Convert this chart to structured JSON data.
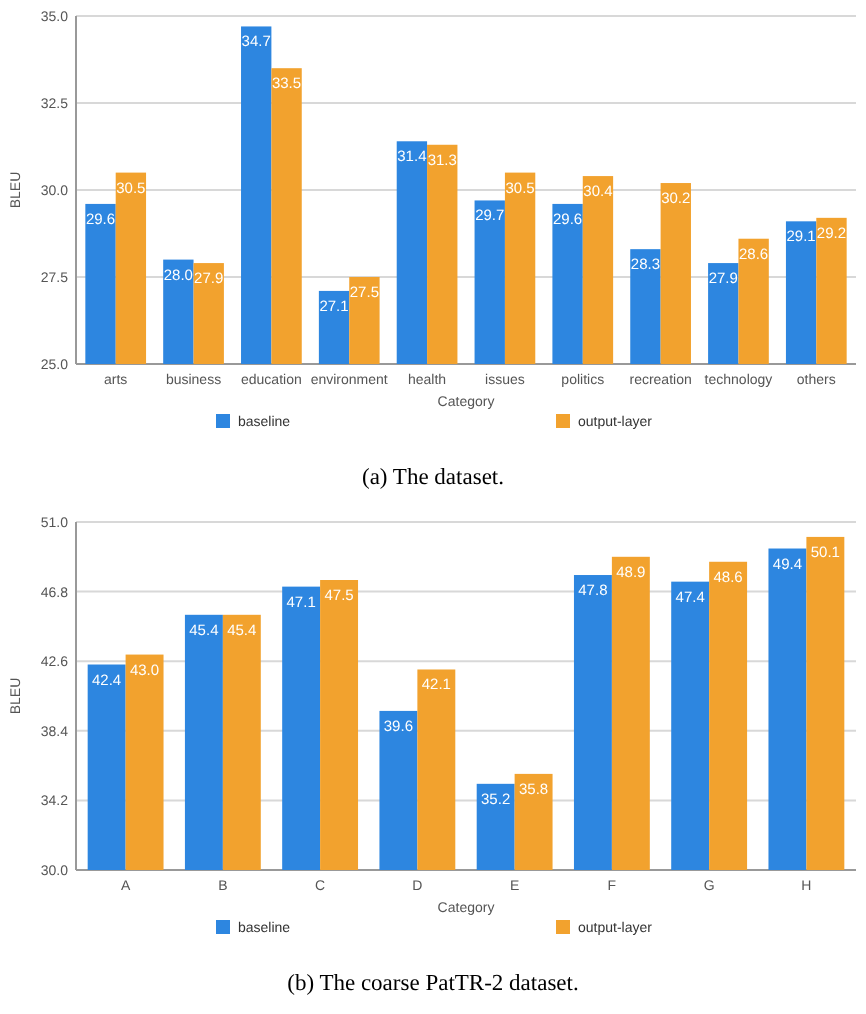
{
  "chart_data": [
    {
      "type": "bar",
      "xlabel": "Category",
      "ylabel": "BLEU",
      "categories": [
        "arts",
        "business",
        "education",
        "environment",
        "health",
        "issues",
        "politics",
        "recreation",
        "technology",
        "others"
      ],
      "ylim": [
        25,
        35
      ],
      "yticks": [
        {
          "value": 25,
          "label": "25.0"
        },
        {
          "value": 27.5,
          "label": "27.5"
        },
        {
          "value": 30,
          "label": "30.0"
        },
        {
          "value": 32.5,
          "label": "32.5"
        },
        {
          "value": 35,
          "label": "35.0"
        }
      ],
      "grid": "y",
      "legend": "bottom",
      "annotations": [
        "(a) The dataset."
      ],
      "series": [
        {
          "name": "baseline",
          "color": "#2d86e0",
          "values": [
            29.6,
            28.0,
            34.7,
            27.1,
            31.4,
            29.7,
            29.6,
            28.3,
            27.9,
            29.1
          ],
          "value_labels": [
            "29.6",
            "28.0",
            "34.7",
            "27.1",
            "31.4",
            "29.7",
            "29.6",
            "28.3",
            "27.9",
            "29.1"
          ]
        },
        {
          "name": "output-layer",
          "color": "#f2a22e",
          "values": [
            30.5,
            27.9,
            33.5,
            27.5,
            31.3,
            30.5,
            30.4,
            30.2,
            28.6,
            29.2
          ],
          "value_labels": [
            "30.5",
            "27.9",
            "33.5",
            "27.5",
            "31.3",
            "30.5",
            "30.4",
            "30.2",
            "28.6",
            "29.2"
          ]
        }
      ]
    },
    {
      "type": "bar",
      "xlabel": "Category",
      "ylabel": "BLEU",
      "categories": [
        "A",
        "B",
        "C",
        "D",
        "E",
        "F",
        "G",
        "H"
      ],
      "ylim": [
        30,
        51
      ],
      "yticks": [
        {
          "value": 30,
          "label": "30.0"
        },
        34.2,
        38.4,
        42.6,
        46.8,
        {
          "value": 51,
          "label": "51.0"
        }
      ],
      "grid": "y",
      "legend": "bottom",
      "annotations": [
        "(b) The coarse PatTR-2 dataset."
      ],
      "series": [
        {
          "name": "baseline",
          "color": "#2d86e0",
          "values": [
            42.4,
            45.4,
            47.1,
            39.6,
            35.2,
            47.8,
            47.4,
            49.4
          ],
          "value_labels": [
            "42.4",
            "45.4",
            "47.1",
            "39.6",
            "35.2",
            "47.8",
            "47.4",
            "49.4"
          ]
        },
        {
          "name": "output-layer",
          "color": "#f2a22e",
          "values": [
            43.0,
            45.4,
            47.5,
            42.1,
            35.8,
            48.9,
            48.6,
            50.1
          ],
          "value_labels": [
            "43.0",
            "45.4",
            "47.5",
            "42.1",
            "35.8",
            "48.9",
            "48.6",
            "50.1"
          ]
        }
      ]
    }
  ]
}
